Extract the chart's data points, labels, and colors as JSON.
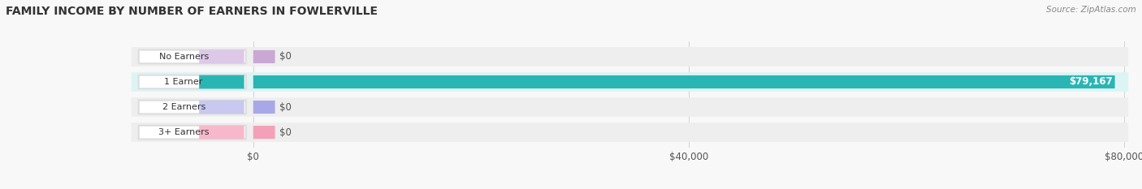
{
  "title": "FAMILY INCOME BY NUMBER OF EARNERS IN FOWLERVILLE",
  "source": "Source: ZipAtlas.com",
  "categories": [
    "No Earners",
    "1 Earner",
    "2 Earners",
    "3+ Earners"
  ],
  "values": [
    0,
    79167,
    0,
    0
  ],
  "max_value": 80000,
  "bar_colors": [
    "#c9a8d4",
    "#2ab5b5",
    "#a8a8e8",
    "#f4a0b8"
  ],
  "label_bg_colors": [
    "#ddc8e8",
    "#2ab5b5",
    "#c8c8f0",
    "#f8b8cc"
  ],
  "row_bg_colors": [
    "#eeeeee",
    "#ddf4f4",
    "#eeeeee",
    "#eeeeee"
  ],
  "value_labels": [
    "$0",
    "$79,167",
    "$0",
    "$0"
  ],
  "x_ticks": [
    0,
    40000,
    80000
  ],
  "x_tick_labels": [
    "$0",
    "$40,000",
    "$80,000"
  ],
  "title_fontsize": 10,
  "bar_height": 0.52,
  "figsize": [
    14.06,
    2.33
  ],
  "dpi": 100
}
